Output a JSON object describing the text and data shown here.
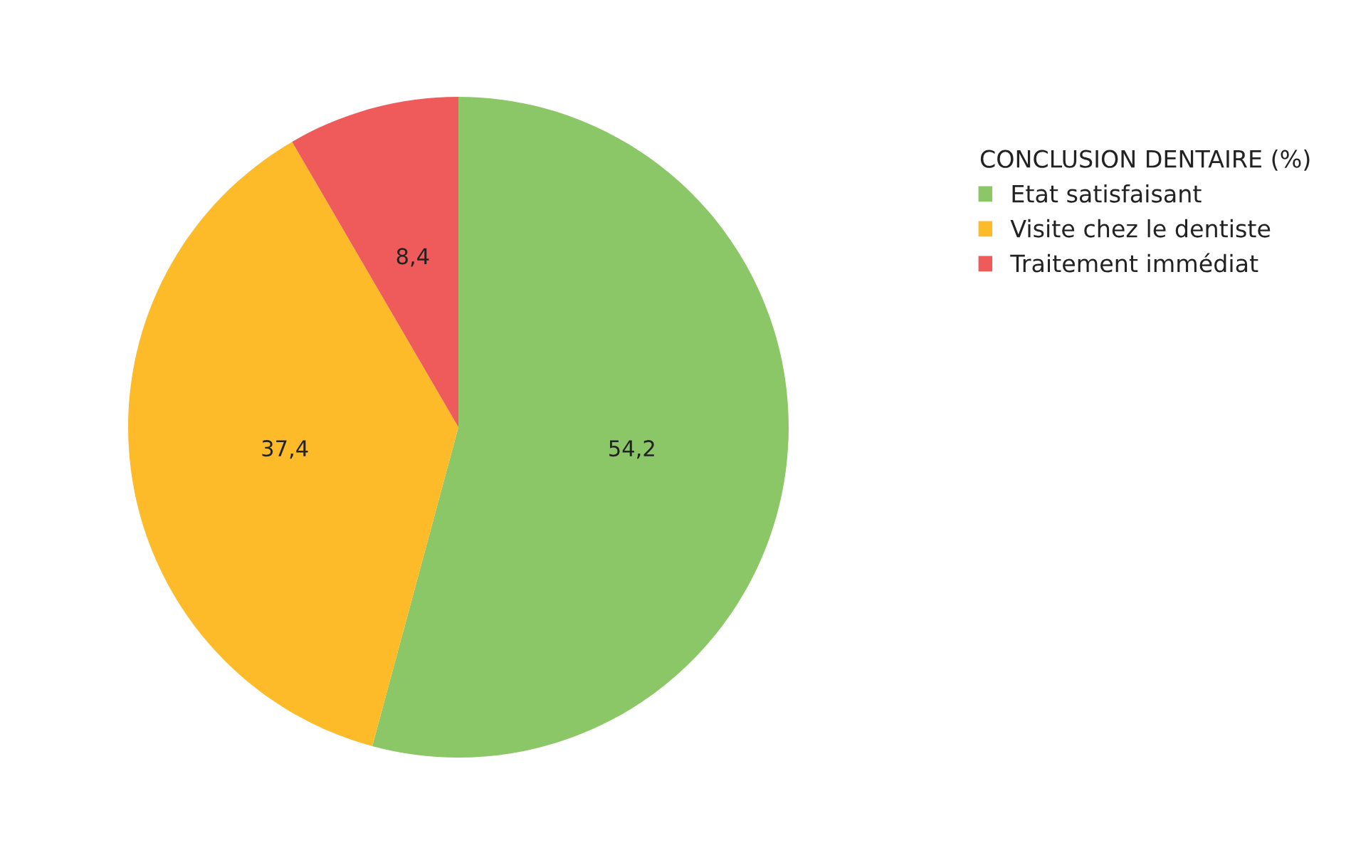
{
  "chart_data": {
    "type": "pie",
    "legend_title": "CONCLUSION DENTAIRE (%)",
    "categories": [
      "Etat satisfaisant",
      "Visite chez le dentiste",
      "Traitement immédiat"
    ],
    "values": [
      54.2,
      37.4,
      8.4
    ],
    "colors": [
      "#8bc766",
      "#fdbb2a",
      "#ef5b5b"
    ],
    "value_labels": [
      "54,2",
      "37,4",
      "8,4"
    ],
    "legend": "right"
  }
}
